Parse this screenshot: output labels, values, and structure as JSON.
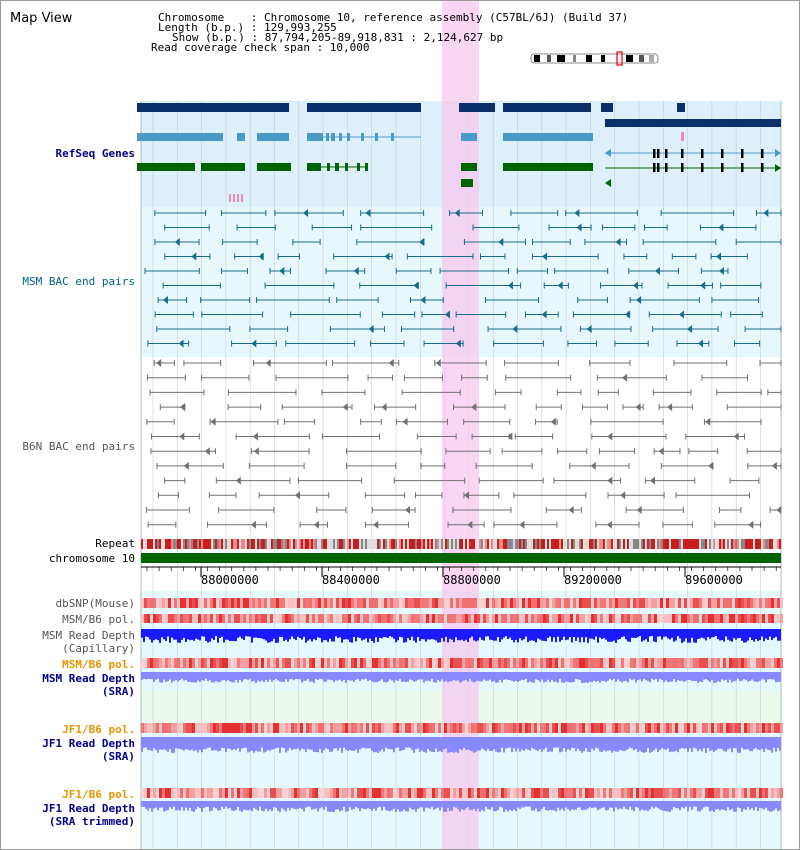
{
  "app": {
    "title": "Map View"
  },
  "header": {
    "chromosome_label": "Chromosome    : Chromosome 10, reference assembly (C57BL/6J) (Build 37)",
    "length_label": "Length (b.p.) : 129,993,255",
    "show_label": "Show (b.p.) : 87,794,205-89,918,831 : 2,124,627 bp",
    "coverage_label": "Read coverage check span : 10,000"
  },
  "tracks": {
    "refseq": "RefSeq Genes",
    "msm_bac": "MSM BAC end pairs",
    "b6n_bac": "B6N BAC end pairs",
    "repeat": "Repeat",
    "chromosome": "chromosome 10",
    "dbsnp": "dbSNP(Mouse)",
    "msm_pol1": "MSM/B6 pol.",
    "msm_depth_cap_1": "MSM Read Depth",
    "msm_depth_cap_2": "(Capillary)",
    "msm_pol2": "MSM/B6 pol.",
    "msm_depth_sra_1": "MSM Read Depth",
    "msm_depth_sra_2": "(SRA)",
    "jf1_pol1": "JF1/B6 pol.",
    "jf1_depth_sra_1": "JF1 Read Depth",
    "jf1_depth_sra_2": "(SRA)",
    "jf1_pol2": "JF1/B6 pol.",
    "jf1_depth_trim_1": "JF1 Read Depth",
    "jf1_depth_trim_2": "(SRA trimmed)"
  },
  "axis": {
    "ticks": [
      "88000000",
      "88400000",
      "88800000",
      "89200000",
      "89600000"
    ]
  },
  "colors": {
    "refseq_dark": "#0a2f6b",
    "refseq_light": "#4a9ac8",
    "refseq_green": "#006400",
    "highlight": "#f7c8f0",
    "chromosome_bar": "#006400",
    "read_depth_capillary": "#1a1aff",
    "read_depth_sra": "#8888ff"
  }
}
